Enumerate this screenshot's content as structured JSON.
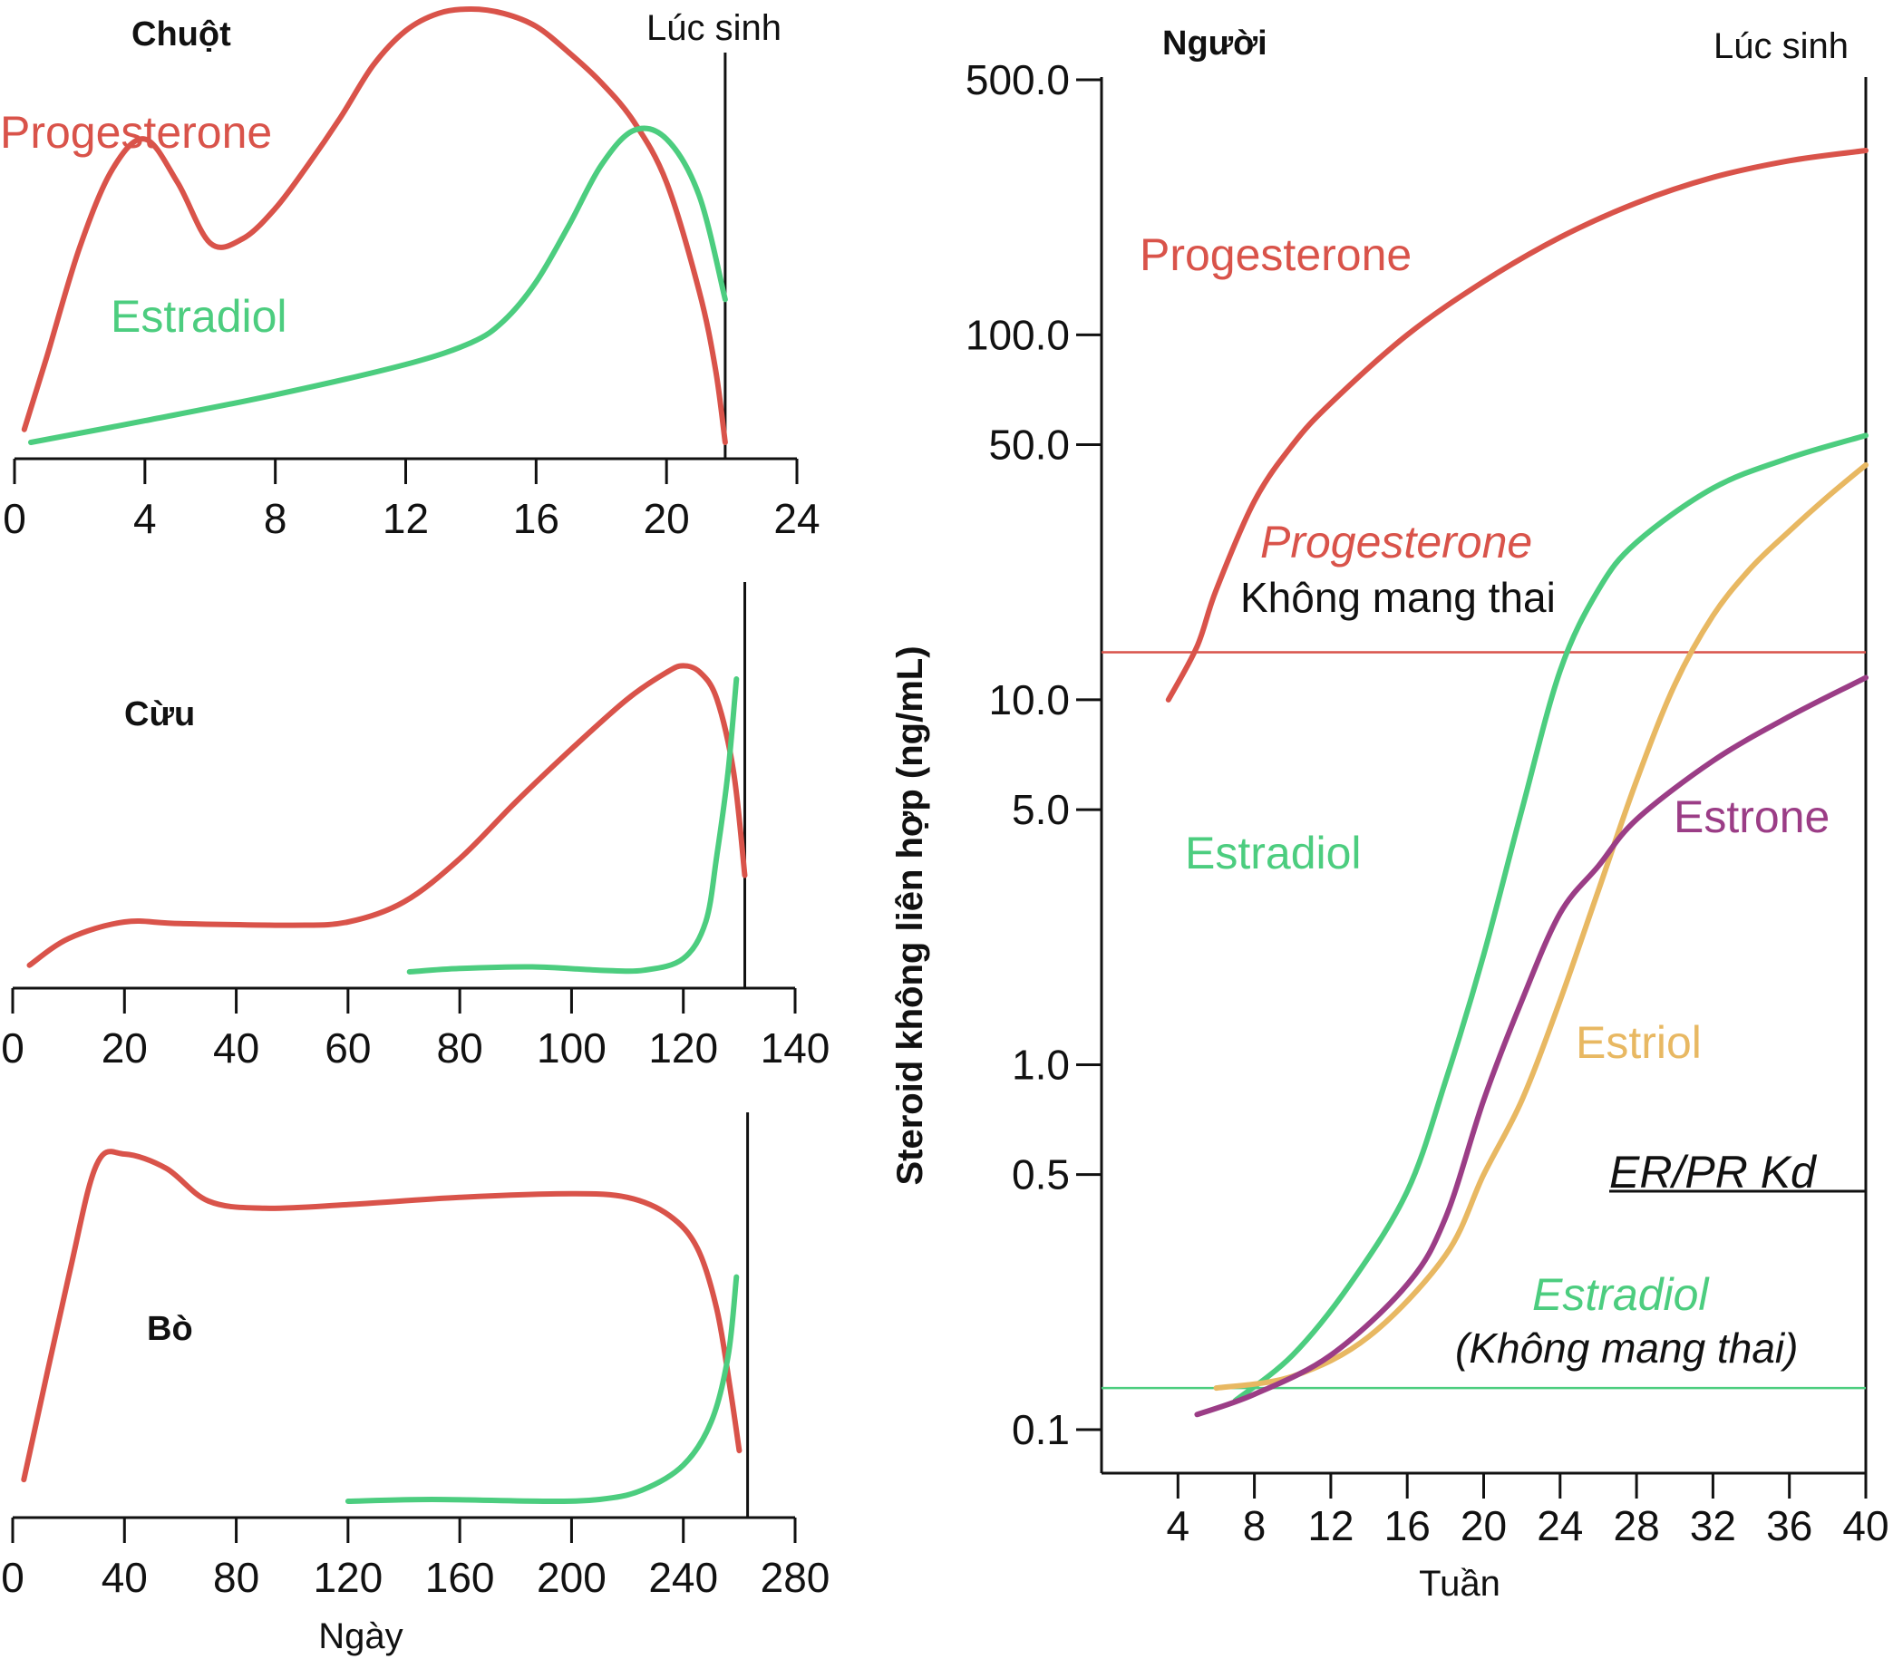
{
  "colors": {
    "progesterone": "#d9534a",
    "estradiol": "#4ccd7f",
    "estriol": "#e8b862",
    "estrone": "#9b3d86"
  },
  "chart_data": [
    {
      "id": "mouse",
      "type": "line",
      "title": "Chuột",
      "birth_label": "Lúc sinh",
      "birth_x": 21.8,
      "xticks": [
        "0",
        "4",
        "8",
        "12",
        "16",
        "20",
        "24"
      ],
      "xlim": [
        0,
        24
      ],
      "series": [
        {
          "name": "Progesterone",
          "color": "progesterone",
          "points": [
            [
              0.3,
              0.03
            ],
            [
              1,
              0.2
            ],
            [
              2,
              0.45
            ],
            [
              3,
              0.63
            ],
            [
              4,
              0.7
            ],
            [
              5,
              0.6
            ],
            [
              6,
              0.46
            ],
            [
              7,
              0.47
            ],
            [
              8,
              0.54
            ],
            [
              9,
              0.64
            ],
            [
              10,
              0.75
            ],
            [
              11,
              0.87
            ],
            [
              12,
              0.95
            ],
            [
              13,
              0.99
            ],
            [
              14,
              1.0
            ],
            [
              15,
              0.99
            ],
            [
              16,
              0.96
            ],
            [
              17,
              0.9
            ],
            [
              18,
              0.83
            ],
            [
              19,
              0.74
            ],
            [
              20,
              0.6
            ],
            [
              21,
              0.35
            ],
            [
              21.5,
              0.17
            ],
            [
              21.8,
              0.0
            ]
          ]
        },
        {
          "name": "Estradiol",
          "color": "estradiol",
          "points": [
            [
              0.5,
              0.0
            ],
            [
              4,
              0.05
            ],
            [
              8,
              0.11
            ],
            [
              12,
              0.18
            ],
            [
              14,
              0.23
            ],
            [
              15,
              0.28
            ],
            [
              16,
              0.37
            ],
            [
              17,
              0.5
            ],
            [
              18,
              0.64
            ],
            [
              19,
              0.72
            ],
            [
              20,
              0.7
            ],
            [
              21,
              0.57
            ],
            [
              21.8,
              0.33
            ]
          ]
        }
      ]
    },
    {
      "id": "sheep",
      "type": "line",
      "title": "Cừu",
      "birth_x": 131,
      "xticks": [
        "0",
        "20",
        "40",
        "60",
        "80",
        "100",
        "120",
        "140"
      ],
      "xlim": [
        0,
        140
      ],
      "series": [
        {
          "name": "",
          "color": "progesterone",
          "points": [
            [
              3,
              0.02
            ],
            [
              10,
              0.1
            ],
            [
              20,
              0.15
            ],
            [
              30,
              0.145
            ],
            [
              50,
              0.14
            ],
            [
              60,
              0.15
            ],
            [
              70,
              0.21
            ],
            [
              80,
              0.34
            ],
            [
              90,
              0.51
            ],
            [
              100,
              0.67
            ],
            [
              110,
              0.82
            ],
            [
              117,
              0.9
            ],
            [
              120,
              0.92
            ],
            [
              123,
              0.9
            ],
            [
              126,
              0.82
            ],
            [
              129,
              0.6
            ],
            [
              131,
              0.29
            ]
          ]
        },
        {
          "name": "",
          "color": "estradiol",
          "points": [
            [
              71,
              0.0
            ],
            [
              80,
              0.01
            ],
            [
              93,
              0.015
            ],
            [
              105,
              0.005
            ],
            [
              113,
              0.005
            ],
            [
              120,
              0.04
            ],
            [
              124,
              0.15
            ],
            [
              126,
              0.35
            ],
            [
              128,
              0.6
            ],
            [
              129.5,
              0.88
            ]
          ]
        }
      ]
    },
    {
      "id": "cow",
      "type": "line",
      "title": "Bò",
      "birth_x": 263,
      "xticks": [
        "0",
        "40",
        "80",
        "120",
        "160",
        "200",
        "240",
        "280"
      ],
      "xlim": [
        0,
        280
      ],
      "xlabel": "Ngày",
      "series": [
        {
          "name": "",
          "color": "progesterone",
          "points": [
            [
              4,
              0.06
            ],
            [
              20,
              0.62
            ],
            [
              30,
              0.93
            ],
            [
              40,
              0.96
            ],
            [
              55,
              0.92
            ],
            [
              70,
              0.83
            ],
            [
              90,
              0.81
            ],
            [
              120,
              0.82
            ],
            [
              160,
              0.84
            ],
            [
              200,
              0.85
            ],
            [
              220,
              0.84
            ],
            [
              235,
              0.79
            ],
            [
              245,
              0.7
            ],
            [
              252,
              0.53
            ],
            [
              257,
              0.3
            ],
            [
              260,
              0.14
            ]
          ]
        },
        {
          "name": "",
          "color": "estradiol",
          "points": [
            [
              120,
              0.0
            ],
            [
              150,
              0.005
            ],
            [
              190,
              0.0
            ],
            [
              210,
              0.005
            ],
            [
              225,
              0.03
            ],
            [
              240,
              0.1
            ],
            [
              250,
              0.22
            ],
            [
              256,
              0.4
            ],
            [
              259,
              0.62
            ]
          ]
        }
      ]
    },
    {
      "id": "human",
      "type": "line",
      "title": "Người",
      "birth_label": "Lúc sinh",
      "birth_x": 40,
      "log_y": true,
      "ylabel": "Steroid không liên hợp (ng/mL)",
      "xlabel": "Tuần",
      "xlim": [
        0,
        40
      ],
      "ylim": [
        0.06,
        500
      ],
      "xticks": [
        4,
        8,
        12,
        16,
        20,
        24,
        28,
        32,
        36,
        40
      ],
      "yticks": [
        {
          "v": 500,
          "t": "500.0"
        },
        {
          "v": 100,
          "t": "100.0"
        },
        {
          "v": 50,
          "t": "50.0"
        },
        {
          "v": 10,
          "t": "10.0"
        },
        {
          "v": 5,
          "t": "5.0"
        },
        {
          "v": 1,
          "t": "1.0"
        },
        {
          "v": 0.5,
          "t": "0.5"
        },
        {
          "v": 0.1,
          "t": "0.1"
        }
      ],
      "series": [
        {
          "name": "Progesterone",
          "color": "progesterone",
          "points": [
            [
              3.5,
              10
            ],
            [
              5,
              14
            ],
            [
              6,
              20
            ],
            [
              8,
              35
            ],
            [
              10,
              50
            ],
            [
              12,
              65
            ],
            [
              16,
              100
            ],
            [
              20,
              140
            ],
            [
              24,
              185
            ],
            [
              28,
              230
            ],
            [
              32,
              270
            ],
            [
              36,
              300
            ],
            [
              40,
              320
            ]
          ]
        },
        {
          "name": "Estradiol",
          "color": "estradiol",
          "points": [
            [
              7,
              0.12
            ],
            [
              10,
              0.16
            ],
            [
              13,
              0.25
            ],
            [
              16,
              0.45
            ],
            [
              18,
              0.9
            ],
            [
              20,
              2.0
            ],
            [
              22,
              5.0
            ],
            [
              24,
              12
            ],
            [
              26,
              20
            ],
            [
              28,
              27
            ],
            [
              32,
              38
            ],
            [
              36,
              46
            ],
            [
              40,
              53
            ]
          ]
        },
        {
          "name": "Estriol",
          "color": "estriol",
          "points": [
            [
              6,
              0.13
            ],
            [
              10,
              0.14
            ],
            [
              14,
              0.18
            ],
            [
              18,
              0.3
            ],
            [
              20,
              0.5
            ],
            [
              22,
              0.8
            ],
            [
              24,
              1.5
            ],
            [
              26,
              3.0
            ],
            [
              28,
              6
            ],
            [
              30,
              11
            ],
            [
              32,
              17
            ],
            [
              34,
              23
            ],
            [
              36,
              29
            ],
            [
              38,
              36
            ],
            [
              40,
              44
            ]
          ]
        },
        {
          "name": "Estrone",
          "color": "estrone",
          "points": [
            [
              5,
              0.11
            ],
            [
              8,
              0.125
            ],
            [
              12,
              0.16
            ],
            [
              16,
              0.25
            ],
            [
              18,
              0.38
            ],
            [
              20,
              0.8
            ],
            [
              22,
              1.5
            ],
            [
              24,
              2.6
            ],
            [
              26,
              3.5
            ],
            [
              28,
              4.7
            ],
            [
              32,
              6.8
            ],
            [
              36,
              9
            ],
            [
              40,
              11.5
            ]
          ]
        }
      ],
      "reference_lines": [
        {
          "value": 13.5,
          "color": "progesterone",
          "label": "Progesterone",
          "sublabel": "Không mang thai"
        },
        {
          "value": 0.13,
          "color": "estradiol",
          "label": "Estradiol",
          "sublabel": "(Không mang thai)"
        }
      ],
      "kd_line": {
        "value": 0.45,
        "label": "ER/PR Kd"
      }
    }
  ]
}
